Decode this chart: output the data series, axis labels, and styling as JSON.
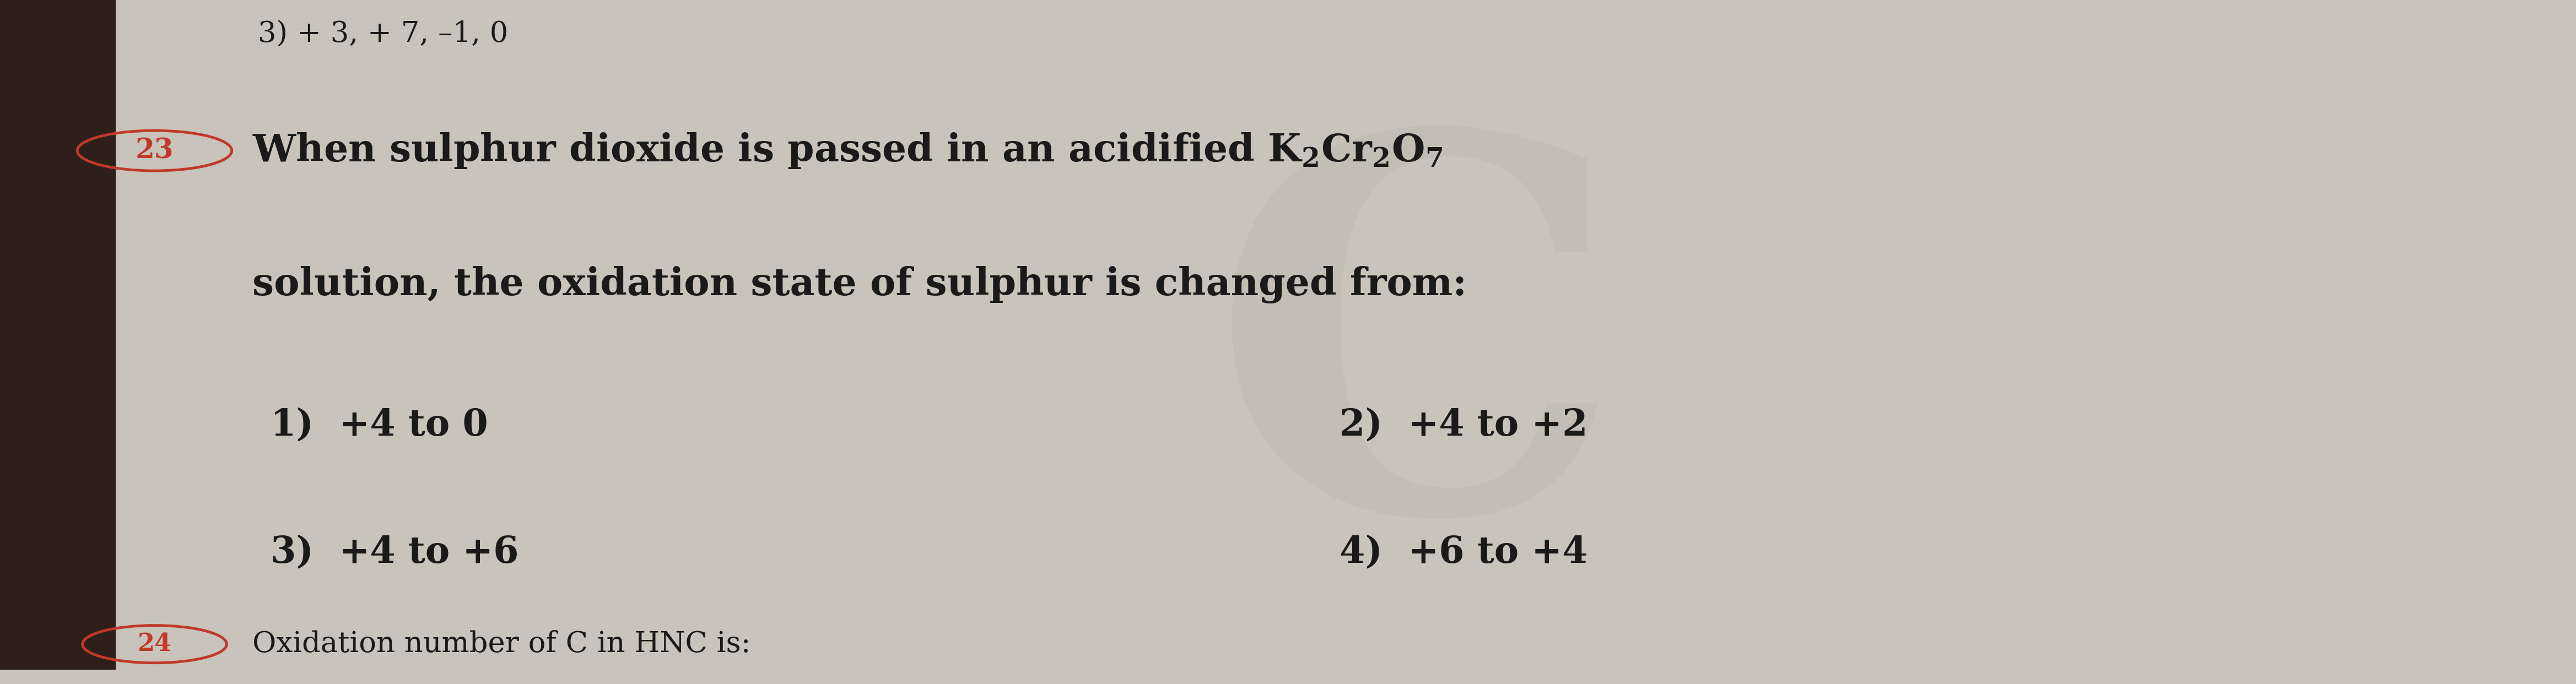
{
  "bg_color": "#c8c4bc",
  "left_bar_color": "#2e1f1a",
  "text_color": "#1a1a1a",
  "circle_color": "#c0392b",
  "top_partial": "3) + 3, + 7, –1, 0",
  "line1_prefix": "23. When sulphur dioxide is passed in an acidified K",
  "line1_formula": "$\\mathregular{K_2Cr_2O_7}$",
  "line2": "solution, the oxidation state of sulphur is changed from:",
  "option1": "1)  +4 to 0",
  "option2": "2)  +4 to +2",
  "option3": "3)  +4 to +6",
  "option4": "4)  +6 to +4",
  "bottom_partial": "Oxidation number of C in HNC is:",
  "bottom_circle": "24",
  "watermark_letter": "C",
  "watermark_color": "#b8b4ac",
  "watermark_alpha": 0.35
}
